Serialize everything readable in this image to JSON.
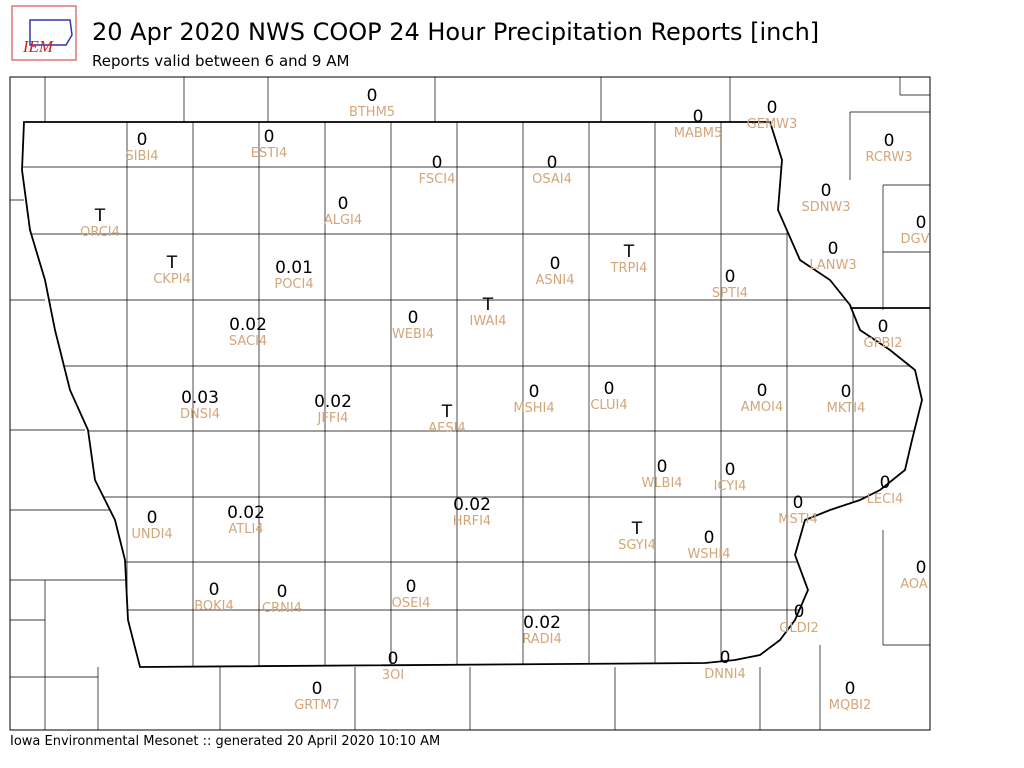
{
  "header": {
    "logo": "IEM",
    "title": "20 Apr 2020 NWS COOP 24 Hour Precipitation Reports [inch]",
    "subtitle": "Reports valid between 6 and 9 AM"
  },
  "stations": [
    {
      "value": "0",
      "id": "BTHM5"
    },
    {
      "value": "0",
      "id": "SIBI4"
    },
    {
      "value": "0",
      "id": "ESTI4"
    },
    {
      "value": "0",
      "id": "MABM5"
    },
    {
      "value": "0",
      "id": "GEMW3"
    },
    {
      "value": "0",
      "id": "RCRW3"
    },
    {
      "value": "0",
      "id": "FSCI4"
    },
    {
      "value": "0",
      "id": "OSAI4"
    },
    {
      "value": "0",
      "id": "SDNW3"
    },
    {
      "value": "T",
      "id": "ORCI4"
    },
    {
      "value": "0",
      "id": "ALGI4"
    },
    {
      "value": "0",
      "id": "DGV"
    },
    {
      "value": "T",
      "id": "CKPI4"
    },
    {
      "value": "0.01",
      "id": "POCI4"
    },
    {
      "value": "0",
      "id": "ASNI4"
    },
    {
      "value": "T",
      "id": "TRPI4"
    },
    {
      "value": "0",
      "id": "LANW3"
    },
    {
      "value": "0",
      "id": "SPTI4"
    },
    {
      "value": "0",
      "id": "WEBI4"
    },
    {
      "value": "T",
      "id": "IWAI4"
    },
    {
      "value": "0.02",
      "id": "SACI4"
    },
    {
      "value": "0",
      "id": "GPBI2"
    },
    {
      "value": "0.03",
      "id": "DNSI4"
    },
    {
      "value": "0.02",
      "id": "JFFI4"
    },
    {
      "value": "T",
      "id": "AESI4"
    },
    {
      "value": "0",
      "id": "MSHI4"
    },
    {
      "value": "0",
      "id": "CLUI4"
    },
    {
      "value": "0",
      "id": "AMOI4"
    },
    {
      "value": "0",
      "id": "MKTI4"
    },
    {
      "value": "0",
      "id": "WLBI4"
    },
    {
      "value": "0",
      "id": "ICYI4"
    },
    {
      "value": "0",
      "id": "LECI4"
    },
    {
      "value": "0",
      "id": "MSTI4"
    },
    {
      "value": "0",
      "id": "UNDI4"
    },
    {
      "value": "0.02",
      "id": "ATLI4"
    },
    {
      "value": "0.02",
      "id": "HRFI4"
    },
    {
      "value": "T",
      "id": "SGYI4"
    },
    {
      "value": "0",
      "id": "WSHI4"
    },
    {
      "value": "0",
      "id": "AOA"
    },
    {
      "value": "0",
      "id": "BOKI4"
    },
    {
      "value": "0",
      "id": "CRNI4"
    },
    {
      "value": "0",
      "id": "OSEI4"
    },
    {
      "value": "0",
      "id": "GLDI2"
    },
    {
      "value": "0.02",
      "id": "RADI4"
    },
    {
      "value": "0",
      "id": "3OI"
    },
    {
      "value": "0",
      "id": "DNNI4"
    },
    {
      "value": "0",
      "id": "GRTM7"
    },
    {
      "value": "0",
      "id": "MQBI2"
    }
  ],
  "footer": "Iowa Environmental Mesonet :: generated 20 April 2020 10:10 AM"
}
